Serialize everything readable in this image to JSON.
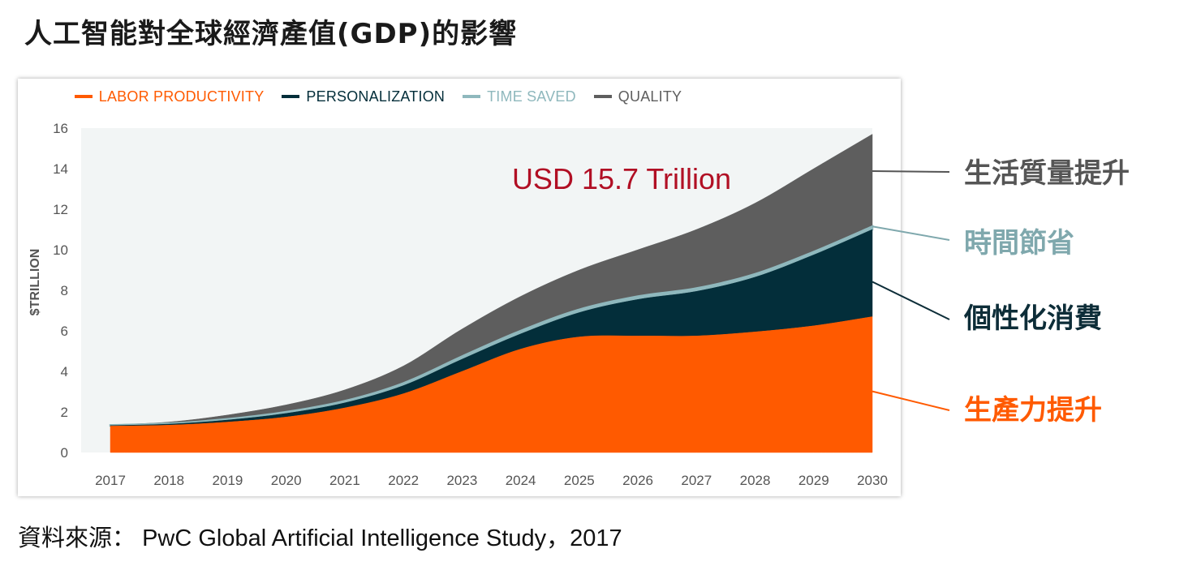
{
  "page": {
    "title": "人工智能對全球經濟產值(GDP)的影響",
    "source_label": "資料來源：",
    "source_text": "PwC Global Artificial Intelligence Study，2017"
  },
  "annotations": [
    {
      "text": "生活質量提升",
      "series": "QUALITY",
      "color": "#555555"
    },
    {
      "text": "時間節省",
      "series": "TIME SAVED",
      "color": "#7fa8ad"
    },
    {
      "text": "個性化消費",
      "series": "PERSONALIZATION",
      "color": "#0d2d38"
    },
    {
      "text": "生產力提升",
      "series": "LABOR PRODUCTIVITY",
      "color": "#ff5a00"
    }
  ],
  "chart_data": {
    "type": "area",
    "stacked": true,
    "callout": "USD 15.7 Trillion",
    "ylabel": "$TRILLION",
    "xlabel": "",
    "ylim": [
      0,
      16
    ],
    "yticks": [
      0,
      2,
      4,
      6,
      8,
      10,
      12,
      14,
      16
    ],
    "x": [
      "2017",
      "2018",
      "2019",
      "2020",
      "2021",
      "2022",
      "2023",
      "2024",
      "2025",
      "2026",
      "2027",
      "2028",
      "2029",
      "2030"
    ],
    "legend_position": "top",
    "series": [
      {
        "name": "LABOR PRODUCTIVITY",
        "color": "#ff5a00",
        "values": [
          1.3,
          1.35,
          1.5,
          1.75,
          2.2,
          2.9,
          4.0,
          5.1,
          5.7,
          5.75,
          5.75,
          5.95,
          6.25,
          6.7
        ]
      },
      {
        "name": "PERSONALIZATION",
        "color": "#032e3a",
        "values": [
          0.03,
          0.05,
          0.1,
          0.18,
          0.25,
          0.4,
          0.6,
          0.75,
          1.2,
          1.8,
          2.2,
          2.7,
          3.5,
          4.3
        ]
      },
      {
        "name": "TIME SAVED",
        "color": "#8fb8bd",
        "values": [
          0.02,
          0.03,
          0.05,
          0.07,
          0.09,
          0.12,
          0.14,
          0.15,
          0.15,
          0.15,
          0.15,
          0.15,
          0.15,
          0.15
        ]
      },
      {
        "name": "QUALITY",
        "color": "#5e5e5e",
        "values": [
          0.02,
          0.07,
          0.2,
          0.35,
          0.55,
          0.85,
          1.35,
          1.7,
          1.95,
          2.3,
          2.9,
          3.5,
          4.1,
          4.55
        ]
      }
    ]
  }
}
